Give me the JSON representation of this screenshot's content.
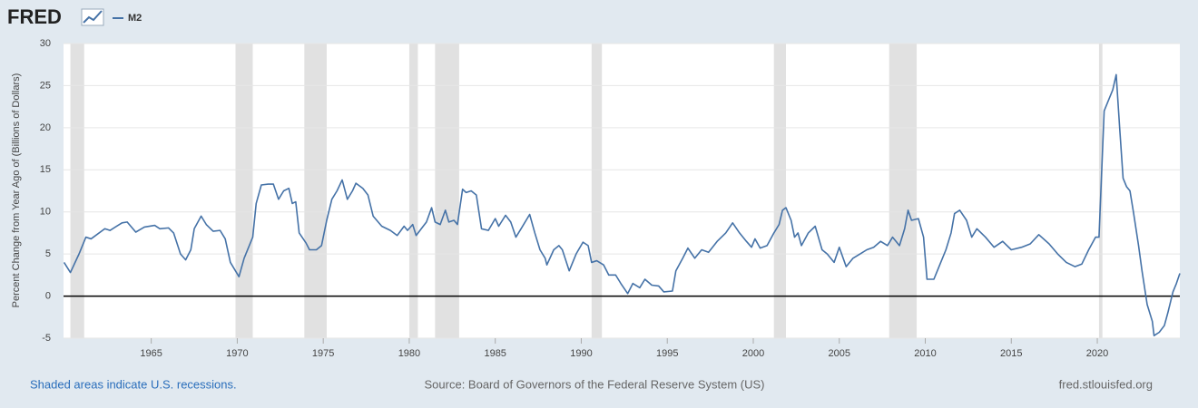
{
  "header": {
    "logo": "FRED"
  },
  "chart_data": {
    "type": "line",
    "ylabel": "Percent Change from Year Ago of (Billions of Dollars)",
    "series": [
      {
        "name": "M2",
        "color": "#4572a7",
        "values": [
          4.0,
          2.8,
          5.0,
          7.0,
          6.8,
          8.0,
          7.8,
          8.7,
          8.8,
          7.6,
          8.2,
          8.4,
          8.0,
          8.1,
          7.5,
          5.0,
          4.3,
          5.5,
          8.0,
          9.5,
          8.5,
          7.7,
          7.8,
          6.8,
          4.0,
          2.3,
          4.5,
          7.0,
          11.0,
          13.2,
          13.3,
          13.3,
          11.5,
          12.5,
          12.8,
          11.0,
          11.2,
          7.5,
          6.3,
          5.5,
          5.5,
          6.0,
          9.0,
          11.5,
          12.5,
          13.8,
          11.5,
          12.5,
          13.4,
          12.8,
          12.0,
          9.5,
          8.3,
          7.8,
          7.2,
          8.3,
          7.8,
          8.5,
          7.2,
          8.0,
          8.8,
          10.5,
          8.8,
          8.5,
          10.2,
          8.8,
          9.0,
          8.5,
          12.7,
          12.3,
          12.5,
          12.0,
          8.0,
          7.8,
          9.2,
          8.3,
          9.6,
          8.8,
          7.0,
          8.0,
          9.7,
          7.5,
          5.5,
          4.5,
          3.7,
          5.5,
          6.0,
          5.5,
          3.0,
          5.0,
          6.4,
          6.0,
          4.0,
          4.2,
          3.7,
          2.5,
          2.5,
          1.5,
          0.3,
          1.5,
          1.0,
          2.0,
          1.3,
          1.2,
          0.5,
          0.6,
          3.0,
          4.5,
          5.7,
          4.5,
          5.5,
          5.2,
          6.5,
          7.5,
          8.7,
          7.5,
          6.5,
          5.8,
          6.8,
          5.7,
          6.0,
          7.5,
          8.5,
          10.2,
          10.5,
          9.0,
          7.0,
          7.5,
          6.0,
          7.5,
          8.3,
          5.5,
          5.0,
          4.0,
          5.8,
          3.5,
          4.5,
          5.0,
          5.5,
          5.8,
          6.5,
          6.0,
          7.0,
          6.0,
          8.0,
          10.2,
          9.0,
          9.2,
          7.0,
          2.0,
          2.0,
          3.5,
          5.5,
          7.5,
          9.8,
          10.2,
          9.0,
          7.0,
          8.0,
          7.0,
          5.8,
          6.5,
          5.5,
          5.8,
          6.2,
          7.3,
          6.2,
          5.0,
          4.0,
          3.5,
          3.8,
          5.5,
          7.0,
          7.0,
          22.0,
          23.5,
          24.5,
          26.3,
          20.0,
          14.0,
          13.0,
          12.5,
          10.0,
          6.0,
          3.0,
          -1.0,
          -3.0,
          -4.7,
          -4.3,
          -3.5,
          -2.0,
          0.5,
          1.5,
          2.7
        ]
      }
    ],
    "x": [
      1959.93,
      1960.3,
      1960.8,
      1961.2,
      1961.5,
      1962.3,
      1962.6,
      1963.3,
      1963.6,
      1964.1,
      1964.6,
      1965.2,
      1965.5,
      1966.0,
      1966.3,
      1966.7,
      1967.0,
      1967.3,
      1967.5,
      1967.9,
      1968.2,
      1968.6,
      1969.0,
      1969.3,
      1969.6,
      1970.1,
      1970.4,
      1970.9,
      1971.1,
      1971.4,
      1971.8,
      1972.1,
      1972.4,
      1972.7,
      1973.0,
      1973.2,
      1973.4,
      1973.6,
      1974.0,
      1974.2,
      1974.6,
      1974.9,
      1975.2,
      1975.5,
      1975.8,
      1976.1,
      1976.4,
      1976.7,
      1976.9,
      1977.3,
      1977.6,
      1977.9,
      1978.4,
      1978.9,
      1979.3,
      1979.7,
      1979.9,
      1980.2,
      1980.4,
      1980.7,
      1981.0,
      1981.3,
      1981.5,
      1981.8,
      1982.1,
      1982.3,
      1982.6,
      1982.8,
      1983.1,
      1983.3,
      1983.6,
      1983.9,
      1984.2,
      1984.6,
      1985.0,
      1985.2,
      1985.6,
      1985.9,
      1986.2,
      1986.5,
      1987.0,
      1987.3,
      1987.6,
      1987.9,
      1988.0,
      1988.4,
      1988.7,
      1988.9,
      1989.3,
      1989.7,
      1990.1,
      1990.4,
      1990.6,
      1990.9,
      1991.3,
      1991.6,
      1992.0,
      1992.3,
      1992.7,
      1993.0,
      1993.4,
      1993.7,
      1994.1,
      1994.5,
      1994.8,
      1995.3,
      1995.5,
      1995.9,
      1996.2,
      1996.6,
      1997.0,
      1997.4,
      1997.9,
      1998.4,
      1998.8,
      1999.2,
      1999.6,
      1999.9,
      2000.1,
      2000.4,
      2000.8,
      2001.2,
      2001.5,
      2001.7,
      2001.9,
      2002.2,
      2002.4,
      2002.6,
      2002.8,
      2003.2,
      2003.6,
      2004.0,
      2004.3,
      2004.7,
      2005.0,
      2005.4,
      2005.8,
      2006.2,
      2006.6,
      2007.0,
      2007.4,
      2007.8,
      2008.1,
      2008.5,
      2008.8,
      2009.0,
      2009.2,
      2009.6,
      2009.9,
      2010.1,
      2010.5,
      2010.8,
      2011.2,
      2011.5,
      2011.7,
      2012.0,
      2012.4,
      2012.7,
      2013.0,
      2013.5,
      2014.0,
      2014.5,
      2015.0,
      2015.6,
      2016.1,
      2016.6,
      2017.2,
      2017.7,
      2018.2,
      2018.7,
      2019.1,
      2019.5,
      2019.9,
      2020.1,
      2020.4,
      2020.7,
      2020.9,
      2021.1,
      2021.3,
      2021.5,
      2021.7,
      2021.9,
      2022.1,
      2022.4,
      2022.6,
      2022.9,
      2023.2,
      2023.3,
      2023.6,
      2023.9,
      2024.1,
      2024.4,
      2024.6,
      2024.8
    ],
    "recessions": [
      [
        1960.3,
        1961.1
      ],
      [
        1969.9,
        1970.9
      ],
      [
        1973.9,
        1975.2
      ],
      [
        1980.0,
        1980.5
      ],
      [
        1981.5,
        1982.9
      ],
      [
        1990.6,
        1991.2
      ],
      [
        2001.2,
        2001.9
      ],
      [
        2007.9,
        2009.5
      ],
      [
        2020.1,
        2020.3
      ]
    ],
    "recession_color": "#e1e1e1",
    "reference_line": 0,
    "xlim": [
      1959.9,
      2024.8
    ],
    "xticks": [
      1965,
      1970,
      1975,
      1980,
      1985,
      1990,
      1995,
      2000,
      2005,
      2010,
      2015,
      2020
    ],
    "ylim": [
      -5,
      30
    ],
    "yticks": [
      -5,
      0,
      5,
      10,
      15,
      20,
      25,
      30
    ],
    "grid": true,
    "note": "Shaded areas indicate U.S. recessions.",
    "source": "Source: Board of Governors of the Federal Reserve System (US)",
    "url": "fred.stlouisfed.org"
  }
}
